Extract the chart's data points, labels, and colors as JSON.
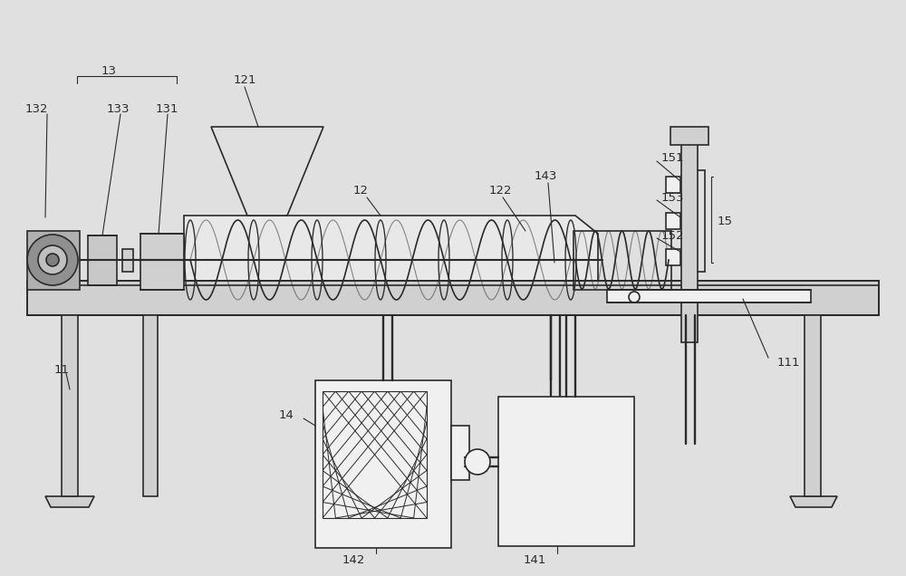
{
  "bg_color": "#e0e0e0",
  "line_color": "#2a2a2a",
  "fill_light": "#d0d0d0",
  "fill_white": "#f0f0f0",
  "fig_width": 10.0,
  "fig_height": 6.36,
  "lw": 1.2
}
